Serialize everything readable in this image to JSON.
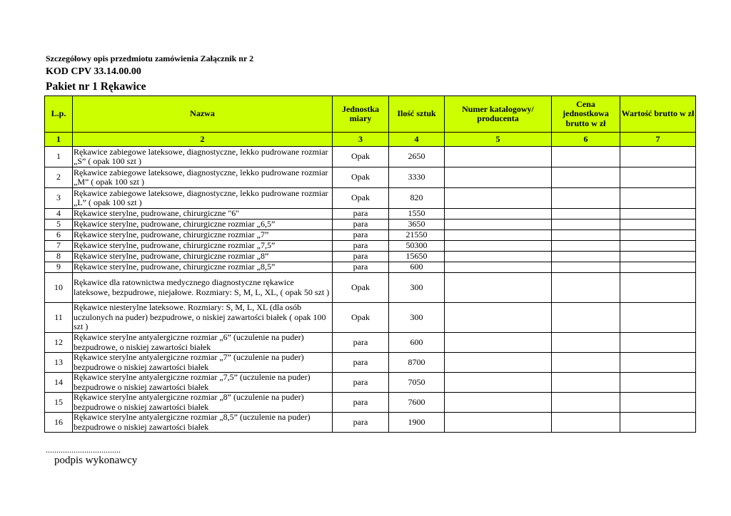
{
  "header": {
    "line1": "Szczegółowy opis przedmiotu zamówienia Załącznik nr 2",
    "line2": "KOD CPV 33.14.00.00",
    "line3": "Pakiet nr 1 Rękawice"
  },
  "table": {
    "header_color": "#ccff00",
    "columns": [
      "L.p.",
      "Nazwa",
      "Jednostka miary",
      "Ilość sztuk",
      "Numer katalogowy/ producenta",
      "Cena jednostkowa brutto w zł",
      "Wartość brutto w zł"
    ],
    "column_numbers": [
      "1",
      "2",
      "3",
      "4",
      "5",
      "6",
      "7"
    ],
    "rows": [
      {
        "lp": "1",
        "name": "Rękawice zabiegowe lateksowe, diagnostyczne, lekko pudrowane rozmiar „S”  ( opak 100 szt )",
        "unit": "Opak",
        "qty": "2650",
        "h": 29
      },
      {
        "lp": "2",
        "name": "Rękawice zabiegowe lateksowe, diagnostyczne, lekko pudrowane rozmiar „M” ( opak 100 szt )",
        "unit": "Opak",
        "qty": "3330",
        "h": 29
      },
      {
        "lp": "3",
        "name": "Rękawice zabiegowe lateksowe, diagnostyczne, lekko pudrowane rozmiar „L” ( opak 100 szt )",
        "unit": "Opak",
        "qty": "820",
        "h": 29
      },
      {
        "lp": "4",
        "name": "Rękawice sterylne, pudrowane, chirurgiczne \"6\"",
        "unit": "para",
        "qty": "1550",
        "h": 15
      },
      {
        "lp": "5",
        "name": "Rękawice sterylne, pudrowane, chirurgiczne rozmiar „6,5”",
        "unit": "para",
        "qty": "3650",
        "h": 15
      },
      {
        "lp": "6",
        "name": "Rękawice sterylne, pudrowane, chirurgiczne  rozmiar „7”",
        "unit": "para",
        "qty": "21550",
        "h": 15
      },
      {
        "lp": "7",
        "name": "Rękawice sterylne, pudrowane, chirurgiczne  rozmiar „7,5”",
        "unit": "para",
        "qty": "50300",
        "h": 15
      },
      {
        "lp": "8",
        "name": "Rękawice sterylne, pudrowane, chirurgiczne  rozmiar „8”",
        "unit": "para",
        "qty": "15650",
        "h": 15
      },
      {
        "lp": "9",
        "name": "Rękawice sterylne, pudrowane, chirurgiczne  rozmiar „8,5”",
        "unit": "para",
        "qty": "600",
        "h": 15
      },
      {
        "lp": "10",
        "name": "Rękawice dla ratownictwa medycznego diagnostyczne rękawice lateksowe, bezpudrowe, niejałowe. Rozmiary: S, M, L, XL,   (  opak 50 szt )",
        "unit": "Opak",
        "qty": "300",
        "h": 42
      },
      {
        "lp": "11",
        "name": "Rękawice niesterylne  lateksowe. Rozmiary:  S, M, L, XL  (dla osób uczulonych na puder) bezpudrowe, o niskiej zawartości białek ( opak 100 szt )",
        "unit": "Opak",
        "qty": "300",
        "h": 42
      },
      {
        "lp": "12",
        "name": "Rękawice sterylne antyalergiczne rozmiar „6” (uczulenie na puder) bezpudrowe, o niskiej zawartości białek",
        "unit": "para",
        "qty": "600",
        "h": 28
      },
      {
        "lp": "13",
        "name": "Rękawice sterylne antyalergiczne rozmiar „7” (uczulenie na puder) bezpudrowe o niskiej zawartości białek",
        "unit": "para",
        "qty": "8700",
        "h": 28
      },
      {
        "lp": "14",
        "name": "Rękawice sterylne antyalergiczne rozmiar „7,5” (uczulenie na puder) bezpudrowe o niskiej zawartości białek",
        "unit": "para",
        "qty": "7050",
        "h": 28
      },
      {
        "lp": "15",
        "name": "Rękawice sterylne antyalergiczne rozmiar „8” (uczulenie na puder) bezpudrowe o niskiej zawartości białek",
        "unit": "para",
        "qty": "7600",
        "h": 28
      },
      {
        "lp": "16",
        "name": "Rękawice sterylne antyalergiczne rozmiar „8,5” (uczulenie na puder) bezpudrowe o niskiej zawartości białek",
        "unit": "para",
        "qty": "1900",
        "h": 28
      }
    ]
  },
  "footer": {
    "dots": "...................................",
    "signature_label": "podpis wykonawcy"
  }
}
